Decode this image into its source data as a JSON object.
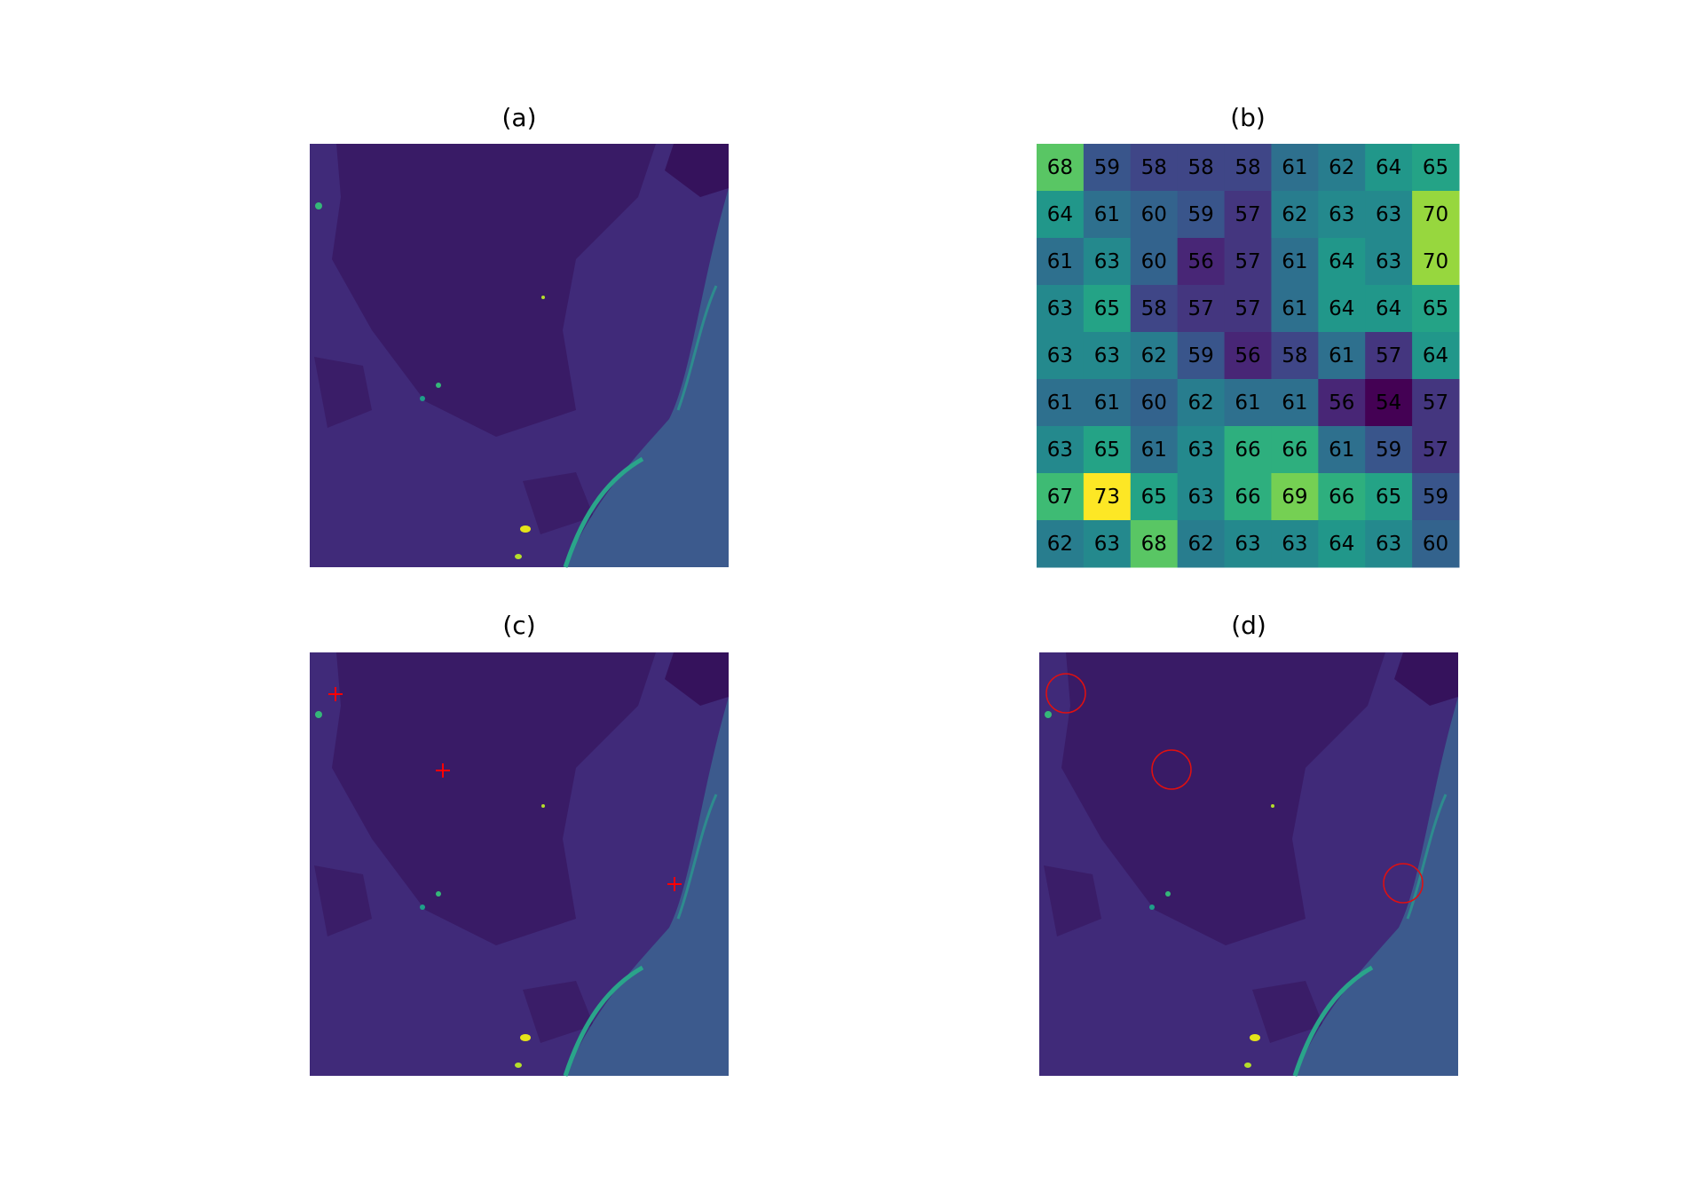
{
  "chart_data": [
    {
      "type": "image",
      "title": "(a)"
    },
    {
      "type": "heatmap",
      "title": "(b)",
      "colormap": "viridis",
      "values": [
        [
          68,
          59,
          58,
          58,
          58,
          61,
          62,
          64,
          65
        ],
        [
          64,
          61,
          60,
          59,
          57,
          62,
          63,
          63,
          70
        ],
        [
          61,
          63,
          60,
          56,
          57,
          61,
          64,
          63,
          70
        ],
        [
          63,
          65,
          58,
          57,
          57,
          61,
          64,
          64,
          65
        ],
        [
          63,
          63,
          62,
          59,
          56,
          58,
          61,
          57,
          64
        ],
        [
          61,
          61,
          60,
          62,
          61,
          61,
          56,
          54,
          57
        ],
        [
          63,
          65,
          61,
          63,
          66,
          66,
          61,
          59,
          57
        ],
        [
          67,
          73,
          65,
          63,
          66,
          69,
          66,
          65,
          59
        ],
        [
          62,
          63,
          68,
          62,
          63,
          63,
          64,
          63,
          60
        ]
      ]
    },
    {
      "type": "image",
      "title": "(c)"
    },
    {
      "type": "image",
      "title": "(d)"
    }
  ]
}
